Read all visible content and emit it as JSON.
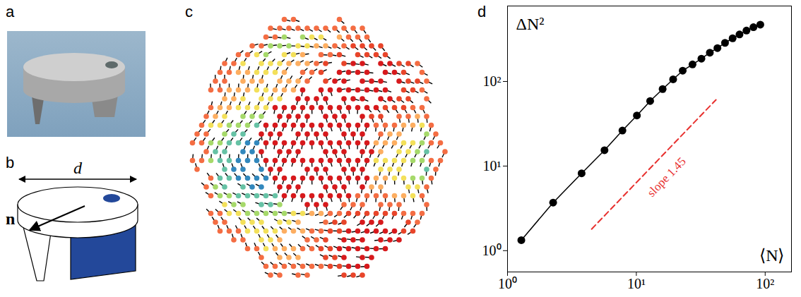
{
  "panel_letters": [
    "a",
    "b",
    "c",
    "d"
  ],
  "schematic": {
    "width_label": "d",
    "direction_label": "n"
  },
  "chart_data": {
    "type": "line",
    "marker": "circle",
    "color": "#000000",
    "log": true,
    "x_label": "⟨N⟩",
    "y_label": "ΔN²",
    "x": [
      1.28,
      2.26,
      3.76,
      5.66,
      7.8,
      10.1,
      12.8,
      16.0,
      19.3,
      22.9,
      27.3,
      32.0,
      37.2,
      42.6,
      48.8,
      55.9,
      63.2,
      71.6,
      81.1,
      91.7
    ],
    "values": [
      1.33,
      3.7,
      8.2,
      15.4,
      26.3,
      39.6,
      58.7,
      81.3,
      106,
      134,
      159,
      186,
      219,
      248,
      286,
      324,
      360,
      400,
      438,
      470
    ],
    "xlim": [
      1,
      160
    ],
    "ylim": [
      0.56,
      780
    ],
    "xticks": [
      {
        "value": 1,
        "label": "10⁰"
      },
      {
        "value": 10,
        "label": "10¹"
      },
      {
        "value": 100,
        "label": "10²"
      }
    ],
    "yticks": [
      {
        "value": 1,
        "label": "10⁰"
      },
      {
        "value": 10,
        "label": "10¹"
      },
      {
        "value": 100,
        "label": "10²"
      }
    ],
    "annotations": [
      {
        "text": "slope 1.45",
        "x": [
          4.5,
          41.5
        ],
        "y": [
          1.8,
          60.7
        ],
        "color": "#e8312f",
        "line_style": "dashed"
      }
    ]
  }
}
